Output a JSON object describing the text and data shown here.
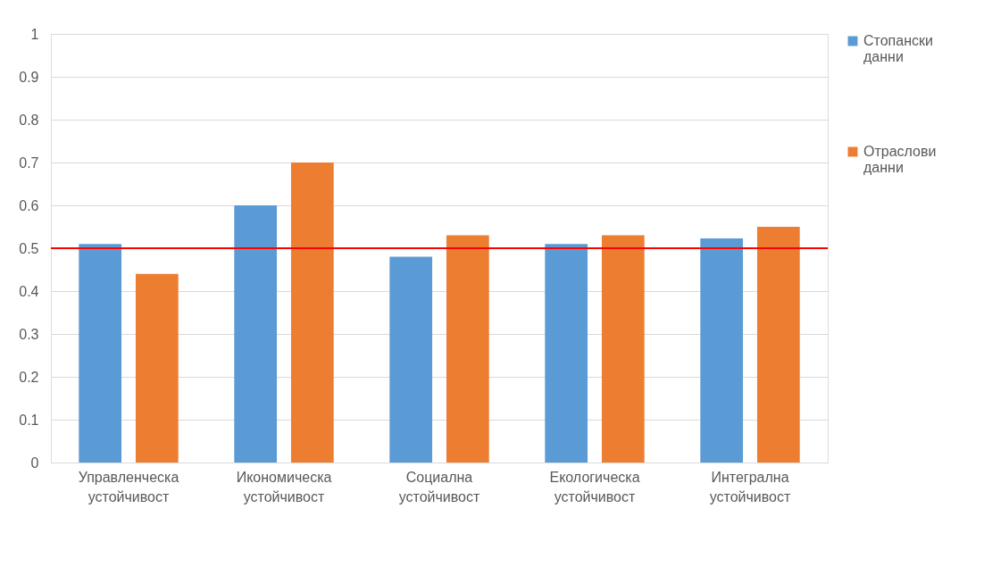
{
  "chart_data": {
    "type": "bar",
    "categories": [
      "Управленческа устойчивост",
      "Икономическа устойчивост",
      "Социална устойчивост",
      "Екологическа устойчивост",
      "Интегрална устойчивост"
    ],
    "series": [
      {
        "name": "Стопански данни",
        "color": "#5b9bd5",
        "values": [
          0.51,
          0.6,
          0.48,
          0.51,
          0.523
        ]
      },
      {
        "name": "Отраслови данни",
        "color": "#ed7d31",
        "values": [
          0.44,
          0.7,
          0.53,
          0.53,
          0.55
        ]
      }
    ],
    "ylim": [
      0,
      1
    ],
    "yticks": [
      0,
      0.1,
      0.2,
      0.3,
      0.4,
      0.5,
      0.6,
      0.7,
      0.8,
      0.9,
      1
    ],
    "grid": "y",
    "legend": "right",
    "ref_lines": [
      {
        "axis": "y",
        "value": 0.5,
        "color": "#ff0000",
        "line_style": "solid"
      }
    ]
  }
}
